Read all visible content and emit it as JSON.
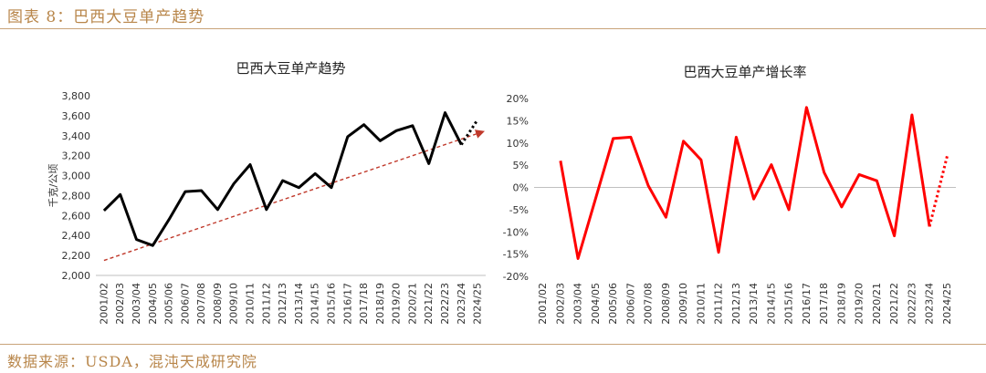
{
  "header": {
    "figure_title": "图表 8：巴西大豆单产趋势"
  },
  "footer": {
    "source": "数据来源：USDA，混沌天成研究院"
  },
  "chart_data": [
    {
      "type": "line",
      "title": "巴西大豆单产趋势",
      "ylabel": "千克/公顷",
      "categories": [
        "2001/02",
        "2002/03",
        "2003/04",
        "2004/05",
        "2005/06",
        "2006/07",
        "2007/08",
        "2008/09",
        "2009/10",
        "2010/11",
        "2011/12",
        "2012/13",
        "2013/14",
        "2014/15",
        "2015/16",
        "2016/17",
        "2017/18",
        "2018/19",
        "2019/20",
        "2020/21",
        "2021/22",
        "2022/23",
        "2023/24",
        "2024/25"
      ],
      "ylim": [
        2000,
        3800
      ],
      "yticks": [
        "2,000",
        "2,200",
        "2,400",
        "2,600",
        "2,800",
        "3,000",
        "3,200",
        "3,400",
        "3,600",
        "3,800"
      ],
      "series": [
        {
          "values": [
            2650,
            2810,
            2360,
            2300,
            2560,
            2840,
            2850,
            2660,
            2920,
            3110,
            2660,
            2950,
            2880,
            3020,
            2880,
            3390,
            3510,
            3350,
            3450,
            3500,
            3120,
            3630,
            3310,
            null
          ],
          "color": "#000000",
          "style": "solid"
        },
        {
          "values": [
            null,
            null,
            null,
            null,
            null,
            null,
            null,
            null,
            null,
            null,
            null,
            null,
            null,
            null,
            null,
            null,
            null,
            null,
            null,
            null,
            null,
            null,
            3310,
            3560
          ],
          "color": "#000000",
          "style": "dotted"
        }
      ],
      "trendline": {
        "from": 2150,
        "to": 3440,
        "color": "#c0392b",
        "style": "dashed"
      }
    },
    {
      "type": "line",
      "title": "巴西大豆单产增长率",
      "categories": [
        "2001/02",
        "2002/03",
        "2003/04",
        "2004/05",
        "2005/06",
        "2006/07",
        "2007/08",
        "2008/09",
        "2009/10",
        "2010/11",
        "2011/12",
        "2012/13",
        "2013/14",
        "2014/15",
        "2015/16",
        "2016/17",
        "2017/18",
        "2018/19",
        "2019/20",
        "2020/21",
        "2021/22",
        "2022/23",
        "2023/24",
        "2024/25"
      ],
      "ylim": [
        -20,
        20
      ],
      "yticks": [
        "-20%",
        "-15%",
        "-10%",
        "-5%",
        "0%",
        "5%",
        "10%",
        "15%",
        "20%"
      ],
      "series": [
        {
          "values": [
            null,
            6,
            -16,
            -2.5,
            11,
            11.3,
            0.4,
            -6.7,
            10.4,
            6.2,
            -14.6,
            11.3,
            -2.6,
            5.1,
            -5.0,
            18,
            3.4,
            -4.4,
            2.9,
            1.5,
            -10.9,
            16.3,
            -8.8,
            null
          ],
          "color": "#ff0000",
          "style": "solid"
        },
        {
          "values": [
            null,
            null,
            null,
            null,
            null,
            null,
            null,
            null,
            null,
            null,
            null,
            null,
            null,
            null,
            null,
            null,
            null,
            null,
            null,
            null,
            null,
            null,
            -8.8,
            7
          ],
          "color": "#ff0000",
          "style": "dotted"
        }
      ]
    }
  ]
}
